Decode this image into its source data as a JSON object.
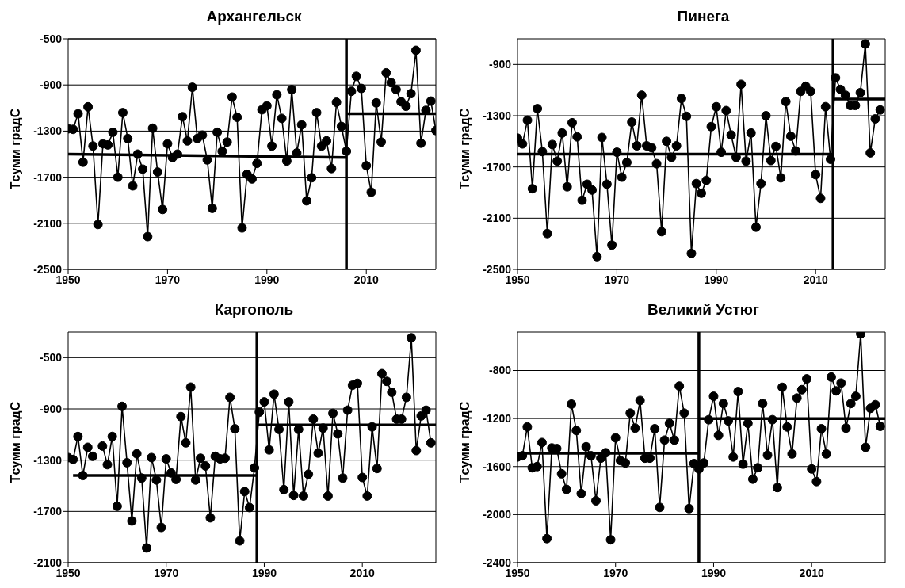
{
  "chart_data": [
    {
      "type": "line",
      "title": "Архангельск",
      "ylabel": "Tсумм градС",
      "xlim": [
        1950,
        2024
      ],
      "xticks": [
        1950,
        1970,
        1990,
        2010
      ],
      "ylim": [
        -2500,
        -500
      ],
      "yticks": [
        -2500,
        -2100,
        -1700,
        -1300,
        -900,
        -500
      ],
      "grid": "y",
      "marker": "circle",
      "x": [
        1950,
        1951,
        1952,
        1953,
        1954,
        1955,
        1956,
        1957,
        1958,
        1959,
        1960,
        1961,
        1962,
        1963,
        1964,
        1965,
        1966,
        1967,
        1968,
        1969,
        1970,
        1971,
        1972,
        1973,
        1974,
        1975,
        1976,
        1977,
        1978,
        1979,
        1980,
        1981,
        1982,
        1983,
        1984,
        1985,
        1986,
        1987,
        1988,
        1989,
        1990,
        1991,
        1992,
        1993,
        1994,
        1995,
        1996,
        1997,
        1998,
        1999,
        2000,
        2001,
        2002,
        2003,
        2004,
        2005,
        2006,
        2007,
        2008,
        2009,
        2010,
        2011,
        2012,
        2013,
        2014,
        2015,
        2016,
        2017,
        2018,
        2019,
        2020,
        2021,
        2022,
        2023,
        2024
      ],
      "series": [
        {
          "color": "#000000",
          "values": [
            -1280,
            -1285,
            -1150,
            -1570,
            -1090,
            -1430,
            -2110,
            -1410,
            -1420,
            -1310,
            -1700,
            -1140,
            -1365,
            -1775,
            -1500,
            -1630,
            -2215,
            -1275,
            -1655,
            -1980,
            -1410,
            -1530,
            -1500,
            -1175,
            -1385,
            -920,
            -1365,
            -1335,
            -1550,
            -1970,
            -1310,
            -1475,
            -1395,
            -1005,
            -1180,
            -2140,
            -1675,
            -1715,
            -1580,
            -1115,
            -1080,
            -1430,
            -985,
            -1190,
            -1560,
            -940,
            -1490,
            -1245,
            -1905,
            -1705,
            -1140,
            -1430,
            -1385,
            -1625,
            -1050,
            -1260,
            -1475,
            -955,
            -825,
            -930,
            -1600,
            -1830,
            -1055,
            -1395,
            -795,
            -880,
            -940,
            -1045,
            -1085,
            -975,
            -600,
            -1405,
            -1120,
            -1040,
            -1295
          ]
        },
        {
          "type": "line",
          "marker": "none",
          "color": "#000000",
          "x": [
            1950,
            2006
          ],
          "values": [
            -1500,
            -1530
          ]
        },
        {
          "type": "line",
          "marker": "none",
          "color": "#000000",
          "x": [
            2006,
            2024
          ],
          "values": [
            -1150,
            -1150
          ]
        }
      ],
      "ref_lines": [
        {
          "axis": "x",
          "value": 2006,
          "color": "#000000"
        }
      ]
    },
    {
      "type": "line",
      "title": "Пинега",
      "ylabel": "Tсумм градС",
      "xlim": [
        1950,
        2024
      ],
      "xticks": [
        1950,
        1970,
        1990,
        2010
      ],
      "ylim": [
        -2500,
        -700
      ],
      "yticks": [
        -2500,
        -2100,
        -1700,
        -1300,
        -900
      ],
      "grid": "y",
      "marker": "circle",
      "x": [
        1950,
        1951,
        1952,
        1953,
        1954,
        1955,
        1956,
        1957,
        1958,
        1959,
        1960,
        1961,
        1962,
        1963,
        1964,
        1965,
        1966,
        1967,
        1968,
        1969,
        1970,
        1971,
        1972,
        1973,
        1974,
        1975,
        1976,
        1977,
        1978,
        1979,
        1980,
        1981,
        1982,
        1983,
        1984,
        1985,
        1986,
        1987,
        1988,
        1989,
        1990,
        1991,
        1992,
        1993,
        1994,
        1995,
        1996,
        1997,
        1998,
        1999,
        2000,
        2001,
        2002,
        2003,
        2004,
        2005,
        2006,
        2007,
        2008,
        2009,
        2010,
        2011,
        2012,
        2013,
        2014,
        2015,
        2016,
        2017,
        2018,
        2019,
        2020,
        2021,
        2022,
        2023
      ],
      "series": [
        {
          "color": "#000000",
          "values": [
            -1475,
            -1520,
            -1335,
            -1870,
            -1245,
            -1580,
            -2220,
            -1525,
            -1655,
            -1435,
            -1855,
            -1355,
            -1465,
            -1960,
            -1835,
            -1880,
            -2400,
            -1470,
            -1835,
            -2310,
            -1585,
            -1780,
            -1665,
            -1350,
            -1535,
            -1140,
            -1535,
            -1550,
            -1675,
            -2205,
            -1500,
            -1625,
            -1535,
            -1165,
            -1305,
            -2375,
            -1830,
            -1905,
            -1805,
            -1385,
            -1230,
            -1585,
            -1260,
            -1450,
            -1625,
            -1055,
            -1655,
            -1435,
            -2170,
            -1830,
            -1300,
            -1650,
            -1540,
            -1785,
            -1190,
            -1460,
            -1575,
            -1110,
            -1070,
            -1110,
            -1760,
            -1945,
            -1230,
            -1640,
            -1005,
            -1095,
            -1140,
            -1220,
            -1220,
            -1120,
            -740,
            -1590,
            -1325,
            -1255
          ]
        },
        {
          "type": "line",
          "marker": "none",
          "color": "#000000",
          "x": [
            1950,
            2013.5
          ],
          "values": [
            -1600,
            -1600
          ]
        },
        {
          "type": "line",
          "marker": "none",
          "color": "#000000",
          "x": [
            2013.5,
            2024
          ],
          "values": [
            -1170,
            -1170
          ]
        }
      ],
      "ref_lines": [
        {
          "axis": "x",
          "value": 2013.5,
          "color": "#000000"
        }
      ]
    },
    {
      "type": "line",
      "title": "Каргополь",
      "ylabel": "Tсумм градС",
      "xlim": [
        1950,
        2025
      ],
      "xticks": [
        1950,
        1970,
        1990,
        2010
      ],
      "ylim": [
        -2100,
        -300
      ],
      "yticks": [
        -2100,
        -1700,
        -1300,
        -900,
        -500
      ],
      "grid": "y",
      "marker": "circle",
      "x": [
        1950,
        1951,
        1952,
        1953,
        1954,
        1955,
        1956,
        1957,
        1958,
        1959,
        1960,
        1961,
        1962,
        1963,
        1964,
        1965,
        1966,
        1967,
        1968,
        1969,
        1970,
        1971,
        1972,
        1973,
        1974,
        1975,
        1976,
        1977,
        1978,
        1979,
        1980,
        1981,
        1982,
        1983,
        1984,
        1985,
        1986,
        1987,
        1988,
        1989,
        1990,
        1991,
        1992,
        1993,
        1994,
        1995,
        1996,
        1997,
        1998,
        1999,
        2000,
        2001,
        2002,
        2003,
        2004,
        2005,
        2006,
        2007,
        2008,
        2009,
        2010,
        2011,
        2012,
        2013,
        2014,
        2015,
        2016,
        2017,
        2018,
        2019,
        2020,
        2021,
        2022,
        2023,
        2024
      ],
      "series": [
        {
          "color": "#000000",
          "values": [
            -1280,
            -1295,
            -1115,
            -1420,
            -1200,
            -1270,
            null,
            -1190,
            -1335,
            -1115,
            -1660,
            -880,
            -1320,
            -1775,
            -1250,
            -1440,
            -1985,
            -1280,
            -1455,
            -1825,
            -1290,
            -1400,
            -1450,
            -960,
            -1165,
            -730,
            -1455,
            -1285,
            -1345,
            -1750,
            -1270,
            -1290,
            -1285,
            -810,
            -1055,
            -1930,
            -1545,
            -1670,
            -1360,
            -925,
            -845,
            -1220,
            -785,
            -1060,
            -1530,
            -845,
            -1575,
            -1060,
            -1580,
            -1410,
            -980,
            -1245,
            -1050,
            -1580,
            -935,
            -1095,
            -1440,
            -910,
            -715,
            -700,
            -1435,
            -1580,
            -1040,
            -1365,
            -625,
            -685,
            -770,
            -980,
            -980,
            -810,
            -345,
            -1225,
            -955,
            -910,
            -1165
          ]
        },
        {
          "type": "line",
          "marker": "none",
          "color": "#000000",
          "x": [
            1951,
            1988.5
          ],
          "values": [
            -1420,
            -1420
          ]
        },
        {
          "type": "line",
          "marker": "none",
          "color": "#000000",
          "x": [
            1988.5,
            2025
          ],
          "values": [
            -1025,
            -1025
          ]
        }
      ],
      "ref_lines": [
        {
          "axis": "x",
          "value": 1988.5,
          "color": "#000000"
        }
      ]
    },
    {
      "type": "line",
      "title": "Великий Устюг",
      "ylabel": "Tсумм градС",
      "xlim": [
        1950,
        2025
      ],
      "xticks": [
        1950,
        1970,
        1990,
        2010
      ],
      "ylim": [
        -2400,
        -480
      ],
      "yticks": [
        -2400,
        -2000,
        -1600,
        -1200,
        -800
      ],
      "grid": "y",
      "marker": "circle",
      "x": [
        1950,
        1951,
        1952,
        1953,
        1954,
        1955,
        1956,
        1957,
        1958,
        1959,
        1960,
        1961,
        1962,
        1963,
        1964,
        1965,
        1966,
        1967,
        1968,
        1969,
        1970,
        1971,
        1972,
        1973,
        1974,
        1975,
        1976,
        1977,
        1978,
        1979,
        1980,
        1981,
        1982,
        1983,
        1984,
        1985,
        1986,
        1987,
        1988,
        1989,
        1990,
        1991,
        1992,
        1993,
        1994,
        1995,
        1996,
        1997,
        1998,
        1999,
        2000,
        2001,
        2002,
        2003,
        2004,
        2005,
        2006,
        2007,
        2008,
        2009,
        2010,
        2011,
        2012,
        2013,
        2014,
        2015,
        2016,
        2017,
        2018,
        2019,
        2020,
        2021,
        2022,
        2023,
        2024
      ],
      "series": [
        {
          "color": "#000000",
          "values": [
            -1520,
            -1510,
            -1270,
            -1610,
            -1600,
            -1400,
            -2200,
            -1445,
            -1450,
            -1660,
            -1790,
            -1080,
            -1300,
            -1825,
            -1435,
            -1510,
            -1885,
            -1530,
            -1485,
            -2210,
            -1360,
            -1550,
            -1570,
            -1155,
            -1280,
            -1050,
            -1530,
            -1530,
            -1285,
            -1940,
            -1380,
            -1240,
            -1380,
            -930,
            -1155,
            -1950,
            -1575,
            -1620,
            -1570,
            -1210,
            -1015,
            -1340,
            -1075,
            -1220,
            -1520,
            -975,
            -1580,
            -1240,
            -1705,
            -1610,
            -1075,
            -1505,
            -1210,
            -1775,
            -940,
            -1270,
            -1495,
            -1030,
            -960,
            -870,
            -1620,
            -1725,
            -1285,
            -1495,
            -855,
            -970,
            -905,
            -1280,
            -1075,
            -1015,
            -495,
            -1440,
            -1115,
            -1085,
            -1265
          ]
        },
        {
          "type": "line",
          "marker": "none",
          "color": "#000000",
          "x": [
            1950,
            1987
          ],
          "values": [
            -1490,
            -1490
          ]
        },
        {
          "type": "line",
          "marker": "none",
          "color": "#000000",
          "x": [
            1987,
            2025
          ],
          "values": [
            -1200,
            -1200
          ]
        }
      ],
      "ref_lines": [
        {
          "axis": "x",
          "value": 1987,
          "color": "#000000"
        }
      ]
    }
  ]
}
